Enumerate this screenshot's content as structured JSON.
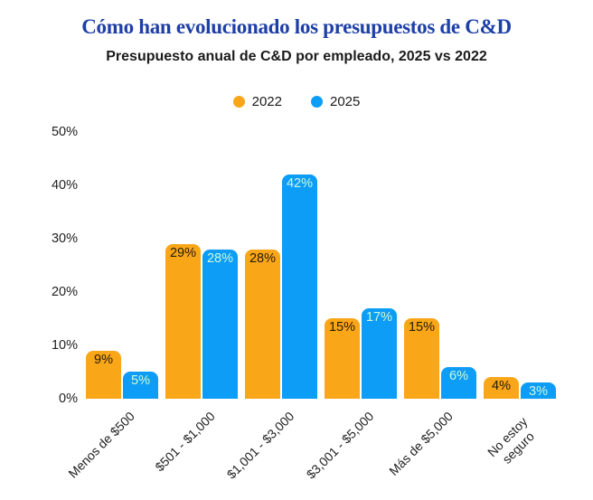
{
  "header": {
    "title": "Cómo han evolucionado los presupuestos de C&D",
    "subtitle": "Presupuesto anual de C&D por empleado, 2025 vs 2022"
  },
  "colors": {
    "title_blue": "#1d3fa6",
    "orange_2022": "#FAA619",
    "blue_2025": "#0D9DF6",
    "label_on_orange": "#241c06",
    "label_on_blue": "#cdf9dc",
    "axis_text": "#222222",
    "background": "#ffffff"
  },
  "chart_data": {
    "type": "bar",
    "title": "Cómo han evolucionado los presupuestos de C&D",
    "subtitle": "Presupuesto anual de C&D por empleado, 2025 vs 2022",
    "categories": [
      "Menos de $500",
      "$501 - $1,000",
      "$1,001 - $3,000",
      "$3,001 - $5,000",
      "Más de $5,000",
      "No estoy seguro"
    ],
    "series": [
      {
        "name": "2022",
        "color": "#FAA619",
        "label_color": "#241c06",
        "values": [
          9,
          29,
          28,
          15,
          15,
          4
        ]
      },
      {
        "name": "2025",
        "color": "#0D9DF6",
        "label_color": "#cdf9dc",
        "values": [
          5,
          28,
          42,
          17,
          6,
          3
        ]
      }
    ],
    "value_label_format": "percent",
    "value_labels": "inside-top",
    "ylabel": "",
    "xlabel": "",
    "ylim": [
      0,
      50
    ],
    "ytick_values": [
      0,
      10,
      20,
      30,
      40,
      50
    ],
    "ytick_labels": [
      "0%",
      "10%",
      "20%",
      "30%",
      "40%",
      "50%"
    ],
    "grid": false,
    "legend_position": "top-center",
    "xtick_rotation_deg": -45,
    "two_line_label_indexes": [
      5
    ]
  }
}
